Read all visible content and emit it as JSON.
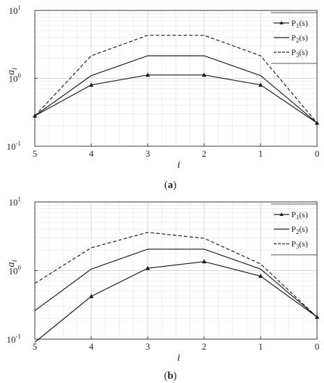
{
  "chart_data": [
    {
      "type": "line",
      "panel_label": "a",
      "x": [
        5,
        4,
        3,
        2,
        1,
        0
      ],
      "xlim": [
        5,
        0
      ],
      "x_reversed": true,
      "ylim": [
        0.1,
        10
      ],
      "y_scale": "log",
      "grid": true,
      "xlabel_base": "i",
      "ylabel_base": "a",
      "ylabel_sub": "i",
      "x_ticks": [
        "5",
        "4",
        "3",
        "2",
        "1",
        "0"
      ],
      "y_ticks": [
        {
          "value": 0.1,
          "base": "10",
          "exp": "-1"
        },
        {
          "value": 1,
          "base": "10",
          "exp": "0"
        },
        {
          "value": 10,
          "base": "10",
          "exp": "1"
        }
      ],
      "legend_position": "top-right",
      "series": [
        {
          "name_base": "P",
          "name_sub": "1",
          "name_suffix": "(s)",
          "style": "solid-marker",
          "values": [
            0.28,
            0.8,
            1.12,
            1.12,
            0.8,
            0.22
          ]
        },
        {
          "name_base": "P",
          "name_sub": "2",
          "name_suffix": "(s)",
          "style": "solid",
          "values": [
            0.28,
            1.1,
            2.15,
            2.15,
            1.1,
            0.22
          ]
        },
        {
          "name_base": "P",
          "name_sub": "3",
          "name_suffix": "(s)",
          "style": "dashed",
          "values": [
            0.28,
            2.15,
            4.3,
            4.3,
            2.15,
            0.22
          ]
        }
      ]
    },
    {
      "type": "line",
      "panel_label": "b",
      "x": [
        5,
        4,
        3,
        2,
        1,
        0
      ],
      "xlim": [
        5,
        0
      ],
      "x_reversed": true,
      "ylim": [
        0.1,
        10
      ],
      "y_scale": "log",
      "grid": true,
      "xlabel_base": "i",
      "ylabel_base": "a",
      "ylabel_sub": "i",
      "x_ticks": [
        "5",
        "4",
        "3",
        "2",
        "1",
        "0"
      ],
      "y_ticks": [
        {
          "value": 0.1,
          "base": "10",
          "exp": "-1"
        },
        {
          "value": 1,
          "base": "10",
          "exp": "0"
        },
        {
          "value": 10,
          "base": "10",
          "exp": "1"
        }
      ],
      "legend_position": "top-right",
      "series": [
        {
          "name_base": "P",
          "name_sub": "1",
          "name_suffix": "(s)",
          "style": "solid-marker",
          "values": [
            0.09,
            0.42,
            1.08,
            1.35,
            0.83,
            0.21
          ]
        },
        {
          "name_base": "P",
          "name_sub": "2",
          "name_suffix": "(s)",
          "style": "solid",
          "values": [
            0.26,
            1.05,
            2.05,
            2.05,
            1.05,
            0.21
          ]
        },
        {
          "name_base": "P",
          "name_sub": "3",
          "name_suffix": "(s)",
          "style": "dashed",
          "values": [
            0.65,
            2.15,
            3.6,
            2.95,
            1.25,
            0.21
          ]
        }
      ]
    }
  ]
}
